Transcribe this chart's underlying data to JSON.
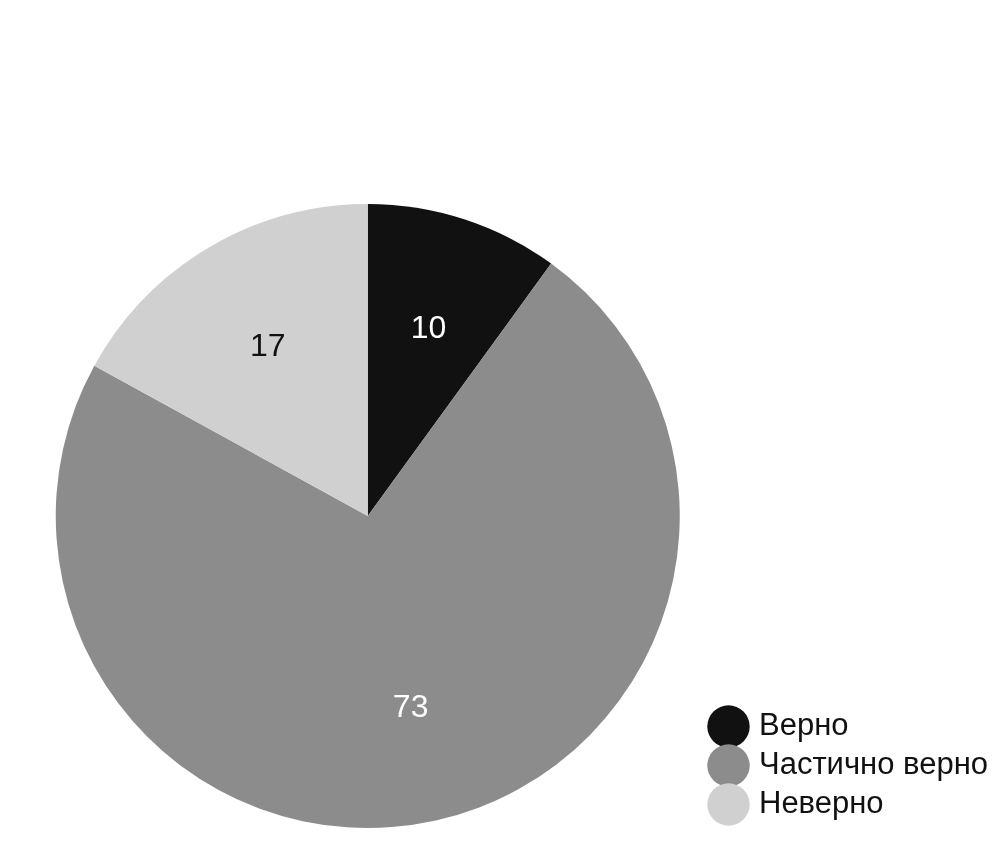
{
  "chart_data": {
    "type": "pie",
    "categories": [
      "Верно",
      "Частично верно",
      "Неверно"
    ],
    "values": [
      10,
      73,
      17
    ],
    "colors": [
      "#111111",
      "#8c8c8c",
      "#d0d0d0"
    ],
    "data_labels": true,
    "legend": "bottom right"
  }
}
